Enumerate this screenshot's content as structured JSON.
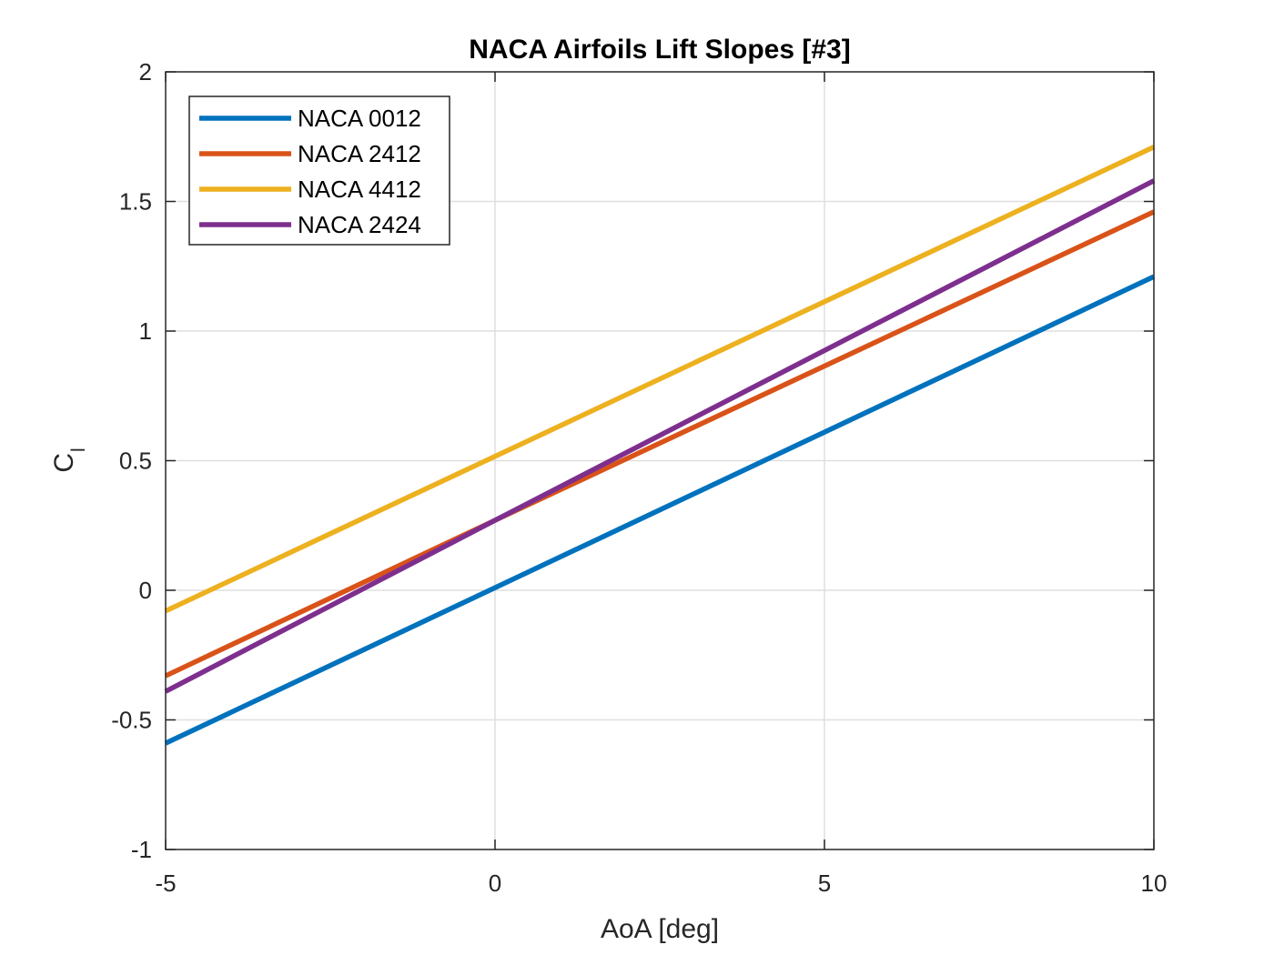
{
  "chart_data": {
    "type": "line",
    "title": "NACA Airfoils Lift Slopes [#3]",
    "xlabel": "AoA [deg]",
    "ylabel_main": "C",
    "ylabel_sub": "l",
    "xlim": [
      -5,
      10
    ],
    "ylim": [
      -1,
      2
    ],
    "xticks": [
      -5,
      0,
      5,
      10
    ],
    "yticks": [
      -1,
      -0.5,
      0,
      0.5,
      1,
      1.5,
      2
    ],
    "xtick_labels": [
      "-5",
      "0",
      "5",
      "10"
    ],
    "ytick_labels": [
      "-1",
      "-0.5",
      "0",
      "0.5",
      "1",
      "1.5",
      "2"
    ],
    "grid": true,
    "legend_position": "top-left",
    "series": [
      {
        "name": "NACA 0012",
        "color": "#0072BD",
        "x": [
          -5,
          10
        ],
        "y": [
          -0.59,
          1.21
        ]
      },
      {
        "name": "NACA 2412",
        "color": "#D95319",
        "x": [
          -5,
          0,
          10
        ],
        "y": [
          -0.33,
          0.27,
          1.46
        ]
      },
      {
        "name": "NACA 4412",
        "color": "#EDB120",
        "x": [
          -5,
          10
        ],
        "y": [
          -0.08,
          1.71
        ]
      },
      {
        "name": "NACA 2424",
        "color": "#7E2F8E",
        "x": [
          -5,
          0,
          10
        ],
        "y": [
          -0.39,
          0.27,
          1.58
        ]
      }
    ]
  }
}
